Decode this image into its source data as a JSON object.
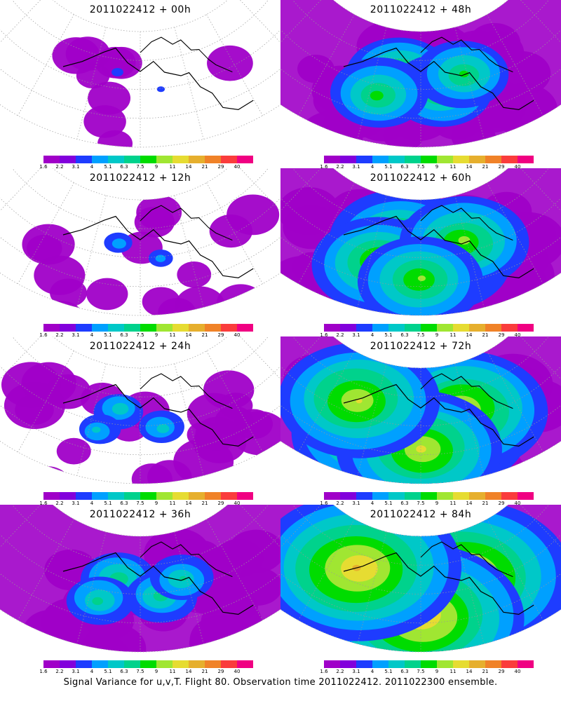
{
  "caption": "Signal Variance for u,v,T. Flight 80. Observation time 2011022412. 2011022300 ensemble.",
  "colorbar": {
    "labels": [
      "1.6",
      "2.2",
      "3.1",
      "4",
      "5.1",
      "6.3",
      "7.5",
      "9",
      "11",
      "14",
      "21",
      "29",
      "40"
    ],
    "colors": [
      "#a000c8",
      "#8200dc",
      "#1e3cff",
      "#00a0ff",
      "#00c8c8",
      "#00d28c",
      "#00dc00",
      "#a0e632",
      "#e6dc32",
      "#e6af2d",
      "#f08228",
      "#fa3c3c",
      "#f00082"
    ]
  },
  "panels": [
    {
      "title": "2011022412 + 00h",
      "intensity": 0
    },
    {
      "title": "2011022412 + 48h",
      "intensity": 4
    },
    {
      "title": "2011022412 + 12h",
      "intensity": 1
    },
    {
      "title": "2011022412 + 60h",
      "intensity": 5
    },
    {
      "title": "2011022412 + 24h",
      "intensity": 2
    },
    {
      "title": "2011022412 + 72h",
      "intensity": 6
    },
    {
      "title": "2011022412 + 36h",
      "intensity": 3
    },
    {
      "title": "2011022412 + 84h",
      "intensity": 7
    }
  ]
}
